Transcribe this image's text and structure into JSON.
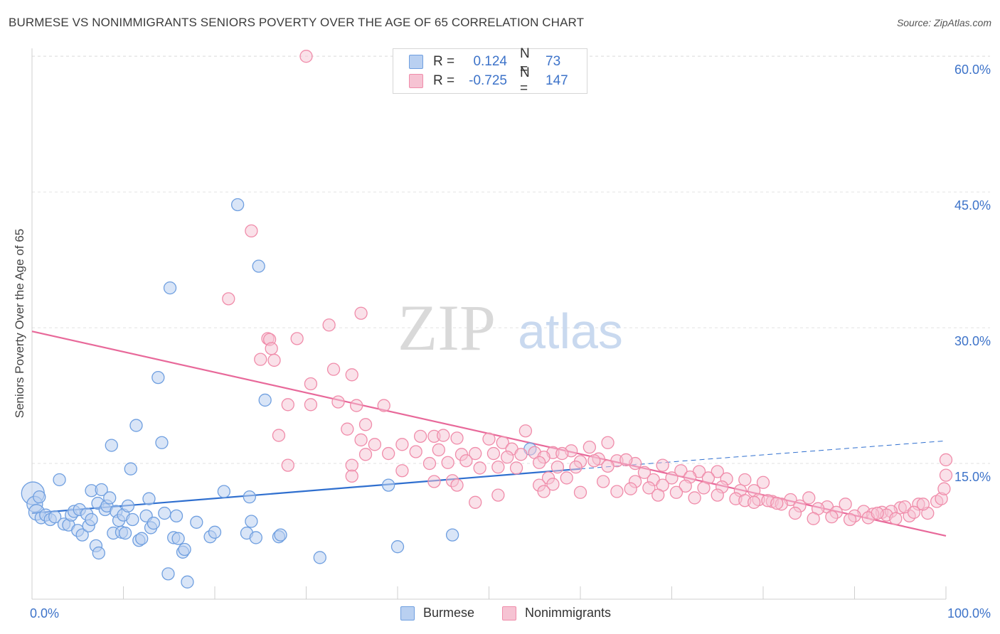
{
  "title": "BURMESE VS NONIMMIGRANTS SENIORS POVERTY OVER THE AGE OF 65 CORRELATION CHART",
  "source": "Source: ZipAtlas.com",
  "watermark": {
    "zip": "ZIP",
    "atlas": "atlas"
  },
  "legend_stats": [
    {
      "r_label": "R =",
      "r_value": "0.124",
      "n_label": "N =",
      "n_value": "73",
      "color": "#6f9fe0"
    },
    {
      "r_label": "R =",
      "r_value": "-0.725",
      "n_label": "N =",
      "n_value": "147",
      "color": "#f08caa"
    }
  ],
  "colors": {
    "burmese": "#6f9fe0",
    "burmese_fill": "#b9d0f1",
    "burmese_line": "#2f6fcf",
    "nonimmigrants": "#f08caa",
    "nonimmigrants_fill": "#f6c3d3",
    "nonimmigrants_line": "#e8699a",
    "tick_label": "#3d73c9"
  },
  "chart_data": {
    "type": "scatter",
    "title": "BURMESE VS NONIMMIGRANTS SENIORS POVERTY OVER THE AGE OF 65 CORRELATION CHART",
    "xlabel": "",
    "ylabel": "Seniors Poverty Over the Age of 65",
    "xlim": [
      0,
      100
    ],
    "ylim": [
      0,
      63
    ],
    "x_tick_labels": [
      {
        "value": 0,
        "label": "0.0%"
      },
      {
        "value": 100,
        "label": "100.0%"
      }
    ],
    "y_tick_labels": [
      {
        "value": 15,
        "label": "15.0%"
      },
      {
        "value": 30,
        "label": "30.0%"
      },
      {
        "value": 45,
        "label": "45.0%"
      },
      {
        "value": 60,
        "label": "60.0%"
      }
    ],
    "grid": "horizontal dashed",
    "legend_position": "bottom",
    "series": [
      {
        "name": "Burmese",
        "r": 0.124,
        "n": 73,
        "trend": {
          "x": [
            0,
            60
          ],
          "y": [
            9.5,
            14.4
          ]
        },
        "trend_extension": {
          "x": [
            60,
            100
          ],
          "y": [
            14.4,
            17.5
          ]
        },
        "points": [
          [
            0.1,
            11.7
          ],
          [
            0.3,
            10.5
          ],
          [
            0.5,
            9.6
          ],
          [
            0.8,
            11.3
          ],
          [
            1.0,
            9.0
          ],
          [
            1.5,
            9.3
          ],
          [
            2.0,
            8.8
          ],
          [
            2.5,
            9.1
          ],
          [
            3.0,
            13.2
          ],
          [
            3.5,
            8.3
          ],
          [
            4.0,
            8.2
          ],
          [
            4.3,
            9.3
          ],
          [
            4.6,
            9.7
          ],
          [
            5.0,
            7.6
          ],
          [
            5.2,
            9.9
          ],
          [
            5.5,
            7.1
          ],
          [
            6.0,
            9.4
          ],
          [
            6.2,
            8.1
          ],
          [
            6.5,
            8.8
          ],
          [
            6.5,
            12.0
          ],
          [
            7.0,
            5.9
          ],
          [
            7.2,
            10.6
          ],
          [
            7.3,
            5.1
          ],
          [
            7.6,
            12.1
          ],
          [
            8.0,
            9.9
          ],
          [
            8.2,
            10.3
          ],
          [
            8.5,
            11.2
          ],
          [
            8.7,
            17.0
          ],
          [
            8.9,
            7.3
          ],
          [
            9.2,
            9.7
          ],
          [
            9.5,
            8.7
          ],
          [
            9.8,
            7.4
          ],
          [
            10.0,
            9.3
          ],
          [
            10.2,
            7.3
          ],
          [
            10.5,
            10.3
          ],
          [
            10.8,
            14.4
          ],
          [
            11.0,
            8.8
          ],
          [
            11.4,
            19.2
          ],
          [
            11.7,
            6.5
          ],
          [
            12.0,
            6.7
          ],
          [
            12.5,
            9.2
          ],
          [
            12.8,
            11.1
          ],
          [
            13.0,
            7.9
          ],
          [
            13.3,
            8.4
          ],
          [
            13.8,
            24.5
          ],
          [
            14.2,
            17.3
          ],
          [
            14.5,
            9.5
          ],
          [
            14.9,
            2.8
          ],
          [
            15.1,
            34.4
          ],
          [
            15.5,
            6.8
          ],
          [
            15.8,
            9.2
          ],
          [
            16.0,
            6.7
          ],
          [
            16.5,
            5.2
          ],
          [
            16.7,
            5.5
          ],
          [
            17.0,
            1.9
          ],
          [
            18.0,
            8.5
          ],
          [
            19.5,
            6.9
          ],
          [
            20.0,
            7.4
          ],
          [
            21.0,
            11.9
          ],
          [
            22.5,
            43.6
          ],
          [
            23.5,
            7.3
          ],
          [
            23.8,
            11.3
          ],
          [
            24.0,
            8.6
          ],
          [
            24.5,
            6.8
          ],
          [
            24.8,
            36.8
          ],
          [
            25.5,
            22.0
          ],
          [
            27.0,
            6.9
          ],
          [
            27.2,
            7.1
          ],
          [
            31.5,
            4.6
          ],
          [
            39.0,
            12.6
          ],
          [
            40.0,
            5.8
          ],
          [
            46.0,
            7.1
          ],
          [
            54.5,
            16.6
          ]
        ]
      },
      {
        "name": "Nonimmigrants",
        "r": -0.725,
        "n": 147,
        "trend": {
          "x": [
            0,
            100
          ],
          "y": [
            29.6,
            7.0
          ]
        },
        "points": [
          [
            30.0,
            60.0
          ],
          [
            24.0,
            40.7
          ],
          [
            21.5,
            33.2
          ],
          [
            36.0,
            31.6
          ],
          [
            32.5,
            30.3
          ],
          [
            25.8,
            28.8
          ],
          [
            26.0,
            28.7
          ],
          [
            29.0,
            28.8
          ],
          [
            26.2,
            27.7
          ],
          [
            25.0,
            26.5
          ],
          [
            26.5,
            26.4
          ],
          [
            33.0,
            25.4
          ],
          [
            35.0,
            24.8
          ],
          [
            30.5,
            23.8
          ],
          [
            28.0,
            21.5
          ],
          [
            30.5,
            21.5
          ],
          [
            33.5,
            21.8
          ],
          [
            35.5,
            21.4
          ],
          [
            38.5,
            21.4
          ],
          [
            36.5,
            19.3
          ],
          [
            34.5,
            18.8
          ],
          [
            27.0,
            18.1
          ],
          [
            36.0,
            17.6
          ],
          [
            37.5,
            17.1
          ],
          [
            40.5,
            17.1
          ],
          [
            42.5,
            18.0
          ],
          [
            44.0,
            18.0
          ],
          [
            45.0,
            18.1
          ],
          [
            46.5,
            17.8
          ],
          [
            50.0,
            17.7
          ],
          [
            51.5,
            17.3
          ],
          [
            52.5,
            16.6
          ],
          [
            54.0,
            18.6
          ],
          [
            55.0,
            16.2
          ],
          [
            57.0,
            16.2
          ],
          [
            59.0,
            16.4
          ],
          [
            61.0,
            16.8
          ],
          [
            63.0,
            17.3
          ],
          [
            36.5,
            16.0
          ],
          [
            39.0,
            16.1
          ],
          [
            42.0,
            16.3
          ],
          [
            44.5,
            16.5
          ],
          [
            47.0,
            16.0
          ],
          [
            48.5,
            16.1
          ],
          [
            50.5,
            16.1
          ],
          [
            52.0,
            15.7
          ],
          [
            53.5,
            16.0
          ],
          [
            56.0,
            15.7
          ],
          [
            58.0,
            16.1
          ],
          [
            60.0,
            15.2
          ],
          [
            62.0,
            15.5
          ],
          [
            64.0,
            15.3
          ],
          [
            66.0,
            15.0
          ],
          [
            28.0,
            14.8
          ],
          [
            35.0,
            14.8
          ],
          [
            40.5,
            14.2
          ],
          [
            43.5,
            15.0
          ],
          [
            45.5,
            15.1
          ],
          [
            47.5,
            15.3
          ],
          [
            49.0,
            14.5
          ],
          [
            51.0,
            14.6
          ],
          [
            53.0,
            14.5
          ],
          [
            55.5,
            15.1
          ],
          [
            57.5,
            14.6
          ],
          [
            59.5,
            14.6
          ],
          [
            61.5,
            15.3
          ],
          [
            63.0,
            14.7
          ],
          [
            65.0,
            15.4
          ],
          [
            67.0,
            14.0
          ],
          [
            69.0,
            14.8
          ],
          [
            71.0,
            14.2
          ],
          [
            73.0,
            14.1
          ],
          [
            75.0,
            14.1
          ],
          [
            35.0,
            13.6
          ],
          [
            44.0,
            13.0
          ],
          [
            46.0,
            13.1
          ],
          [
            56.5,
            13.4
          ],
          [
            58.5,
            13.4
          ],
          [
            62.5,
            13.0
          ],
          [
            66.0,
            13.0
          ],
          [
            68.0,
            13.2
          ],
          [
            70.0,
            13.4
          ],
          [
            72.0,
            13.5
          ],
          [
            74.0,
            13.4
          ],
          [
            76.0,
            13.3
          ],
          [
            78.0,
            13.2
          ],
          [
            80.0,
            12.9
          ],
          [
            46.5,
            12.6
          ],
          [
            55.5,
            12.6
          ],
          [
            57.0,
            12.7
          ],
          [
            65.5,
            12.2
          ],
          [
            67.5,
            12.3
          ],
          [
            69.0,
            12.6
          ],
          [
            71.5,
            12.5
          ],
          [
            73.5,
            12.3
          ],
          [
            75.5,
            12.4
          ],
          [
            77.5,
            12.0
          ],
          [
            79.0,
            12.0
          ],
          [
            48.5,
            10.7
          ],
          [
            51.0,
            11.5
          ],
          [
            56.0,
            11.9
          ],
          [
            60.0,
            11.8
          ],
          [
            64.0,
            11.9
          ],
          [
            68.5,
            11.5
          ],
          [
            70.5,
            11.8
          ],
          [
            72.5,
            11.2
          ],
          [
            75.0,
            11.5
          ],
          [
            77.0,
            11.1
          ],
          [
            79.5,
            11.0
          ],
          [
            81.0,
            10.8
          ],
          [
            83.0,
            11.0
          ],
          [
            85.0,
            11.2
          ],
          [
            87.0,
            10.2
          ],
          [
            89.0,
            10.5
          ],
          [
            91.0,
            9.7
          ],
          [
            93.0,
            9.6
          ],
          [
            95.0,
            10.1
          ],
          [
            97.0,
            10.5
          ],
          [
            99.0,
            10.8
          ],
          [
            78.0,
            10.9
          ],
          [
            80.5,
            10.9
          ],
          [
            82.0,
            10.5
          ],
          [
            84.0,
            10.3
          ],
          [
            86.0,
            10.0
          ],
          [
            88.0,
            9.6
          ],
          [
            90.0,
            9.2
          ],
          [
            92.0,
            9.4
          ],
          [
            94.0,
            9.7
          ],
          [
            96.0,
            9.2
          ],
          [
            98.0,
            9.5
          ],
          [
            79.0,
            10.7
          ],
          [
            81.5,
            10.6
          ],
          [
            83.5,
            9.5
          ],
          [
            85.5,
            8.9
          ],
          [
            87.5,
            9.1
          ],
          [
            89.5,
            8.8
          ],
          [
            91.5,
            9.0
          ],
          [
            93.5,
            9.3
          ],
          [
            95.5,
            10.2
          ],
          [
            97.5,
            10.5
          ],
          [
            99.5,
            11.1
          ],
          [
            99.8,
            12.2
          ],
          [
            100.0,
            13.7
          ],
          [
            100.0,
            15.4
          ],
          [
            96.5,
            9.6
          ],
          [
            94.5,
            8.9
          ],
          [
            92.5,
            9.5
          ]
        ]
      }
    ]
  }
}
